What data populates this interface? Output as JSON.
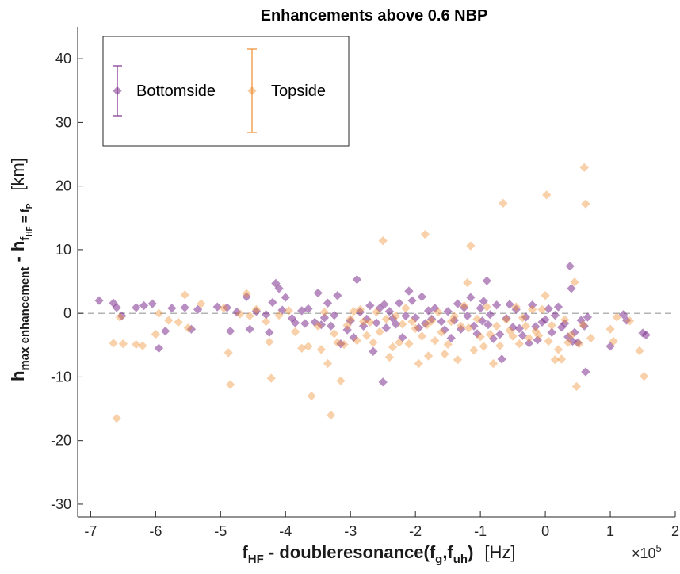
{
  "chart_data": {
    "type": "scatter",
    "title": "Enhancements above 0.6 NBP",
    "xlim": [
      -7.2,
      2.0
    ],
    "ylim": [
      -32,
      45
    ],
    "x_multiplier": "×10",
    "x_multiplier_exp": "5",
    "x_ticks": [
      "-7",
      "-6",
      "-5",
      "-4",
      "-3",
      "-2",
      "-1",
      "0",
      "1",
      "2"
    ],
    "y_ticks": [
      "-30",
      "-20",
      "-10",
      "0",
      "10",
      "20",
      "30",
      "40"
    ],
    "xlabel_parts": {
      "f": "f",
      "f_sub": "HF",
      "mid": " - doubleresonance(f",
      "g_sub": "g",
      "comma": ",f",
      "uh_sub": "uh",
      "close": ")",
      "unit": "[Hz]"
    },
    "ylabel_parts": {
      "h": "h",
      "h_sub": "max enhancement",
      "dash": " - h",
      "f_sub": "f",
      "hf_subsub": "HF",
      "eq": " = f",
      "p_subsub": "P",
      "unit": "[km]"
    },
    "grid": false,
    "reference_line_y": 0,
    "legend": {
      "placement": "top-left",
      "entries": [
        {
          "name": "Bottomside",
          "color": "#7e2f8e",
          "errorbar": [
            31,
            39
          ]
        },
        {
          "name": "Topside",
          "color": "#ed8b2d",
          "errorbar": [
            28.5,
            41.5
          ]
        }
      ]
    },
    "series": [
      {
        "name": "Bottomside",
        "color": "#7e2f8e",
        "points": [
          [
            -6.87,
            2.0
          ],
          [
            -6.65,
            1.6
          ],
          [
            -6.6,
            0.9
          ],
          [
            -6.52,
            -0.4
          ],
          [
            -6.3,
            0.9
          ],
          [
            -6.18,
            1.2
          ],
          [
            -6.05,
            1.5
          ],
          [
            -5.95,
            -5.5
          ],
          [
            -5.85,
            -2.8
          ],
          [
            -5.75,
            0.8
          ],
          [
            -5.55,
            0.9
          ],
          [
            -5.45,
            -2.5
          ],
          [
            -5.35,
            0.6
          ],
          [
            -5.05,
            1.0
          ],
          [
            -4.9,
            0.9
          ],
          [
            -4.85,
            -2.8
          ],
          [
            -4.75,
            0.2
          ],
          [
            -4.6,
            2.6
          ],
          [
            -4.55,
            -2.5
          ],
          [
            -4.45,
            0.3
          ],
          [
            -4.3,
            -0.2
          ],
          [
            -4.25,
            -3.0
          ],
          [
            -4.2,
            1.7
          ],
          [
            -4.15,
            4.7
          ],
          [
            -4.1,
            3.9
          ],
          [
            -4.05,
            0.5
          ],
          [
            -4.0,
            2.5
          ],
          [
            -3.9,
            -0.8
          ],
          [
            -3.85,
            -1.5
          ],
          [
            -3.75,
            0.4
          ],
          [
            -3.7,
            -1.6
          ],
          [
            -3.65,
            0.7
          ],
          [
            -3.55,
            -1.4
          ],
          [
            -3.5,
            3.2
          ],
          [
            -3.45,
            -1.8
          ],
          [
            -3.4,
            -0.7
          ],
          [
            -3.35,
            1.6
          ],
          [
            -3.3,
            -2.0
          ],
          [
            -3.25,
            -0.3
          ],
          [
            -3.2,
            2.8
          ],
          [
            -3.15,
            -4.8
          ],
          [
            -3.05,
            -2.6
          ],
          [
            -3.0,
            -1.2
          ],
          [
            -2.95,
            -3.8
          ],
          [
            -2.9,
            5.3
          ],
          [
            -2.85,
            0.2
          ],
          [
            -2.8,
            -2.0
          ],
          [
            -2.75,
            -0.9
          ],
          [
            -2.7,
            1.2
          ],
          [
            -2.65,
            -6.0
          ],
          [
            -2.6,
            -1.5
          ],
          [
            -2.55,
            0.8
          ],
          [
            -2.5,
            -10.8
          ],
          [
            -2.48,
            1.4
          ],
          [
            -2.45,
            -2.3
          ],
          [
            -2.4,
            0.3
          ],
          [
            -2.35,
            -0.8
          ],
          [
            -2.3,
            -1.7
          ],
          [
            -2.25,
            1.6
          ],
          [
            -2.2,
            -3.8
          ],
          [
            -2.15,
            -0.4
          ],
          [
            -2.1,
            3.5
          ],
          [
            -2.05,
            2.0
          ],
          [
            -2.0,
            -0.7
          ],
          [
            -1.95,
            -2.3
          ],
          [
            -1.9,
            2.6
          ],
          [
            -1.85,
            -1.6
          ],
          [
            -1.8,
            0.4
          ],
          [
            -1.75,
            -0.9
          ],
          [
            -1.7,
            0.8
          ],
          [
            -1.6,
            -1.3
          ],
          [
            -1.55,
            -2.6
          ],
          [
            -1.5,
            0.3
          ],
          [
            -1.45,
            -3.9
          ],
          [
            -1.4,
            -1.1
          ],
          [
            -1.35,
            1.5
          ],
          [
            -1.3,
            -2.5
          ],
          [
            -1.25,
            0.9
          ],
          [
            -1.2,
            -0.4
          ],
          [
            -1.15,
            2.5
          ],
          [
            -1.1,
            -2.0
          ],
          [
            -1.05,
            -3.2
          ],
          [
            -1.0,
            0.8
          ],
          [
            -0.97,
            -1.2
          ],
          [
            -0.95,
            1.9
          ],
          [
            -0.9,
            5.1
          ],
          [
            -0.88,
            -1.8
          ],
          [
            -0.85,
            -0.2
          ],
          [
            -0.8,
            -4.0
          ],
          [
            -0.75,
            1.3
          ],
          [
            -0.7,
            -3.3
          ],
          [
            -0.67,
            -7.2
          ],
          [
            -0.6,
            -0.8
          ],
          [
            -0.55,
            1.4
          ],
          [
            -0.5,
            -2.2
          ],
          [
            -0.45,
            0.6
          ],
          [
            -0.4,
            -2.4
          ],
          [
            -0.35,
            -3.5
          ],
          [
            -0.3,
            -0.6
          ],
          [
            -0.25,
            -4.7
          ],
          [
            -0.2,
            1.3
          ],
          [
            -0.15,
            -2.1
          ],
          [
            -0.12,
            -4.2
          ],
          [
            -0.05,
            -1.4
          ],
          [
            0.0,
            -1.0
          ],
          [
            0.05,
            0.7
          ],
          [
            0.1,
            -3.0
          ],
          [
            0.15,
            -0.3
          ],
          [
            0.2,
            1.0
          ],
          [
            0.25,
            -2.2
          ],
          [
            0.3,
            -1.6
          ],
          [
            0.35,
            -3.7
          ],
          [
            0.38,
            7.4
          ],
          [
            0.4,
            3.9
          ],
          [
            0.42,
            -4.4
          ],
          [
            0.45,
            -3.0
          ],
          [
            0.5,
            -4.6
          ],
          [
            0.55,
            -1.1
          ],
          [
            0.6,
            -2.0
          ],
          [
            0.62,
            -9.2
          ],
          [
            0.65,
            -0.6
          ],
          [
            1.0,
            -5.2
          ],
          [
            1.2,
            -0.2
          ],
          [
            1.25,
            -1.1
          ],
          [
            1.5,
            -3.1
          ],
          [
            1.55,
            -3.4
          ]
        ]
      },
      {
        "name": "Topside",
        "color": "#ed8b2d",
        "points": [
          [
            -6.65,
            -4.7
          ],
          [
            -6.6,
            -16.5
          ],
          [
            -6.55,
            -0.6
          ],
          [
            -6.5,
            -4.8
          ],
          [
            -6.3,
            -4.9
          ],
          [
            -6.2,
            -5.1
          ],
          [
            -6.0,
            -3.3
          ],
          [
            -5.95,
            0.0
          ],
          [
            -5.8,
            -1.1
          ],
          [
            -5.65,
            -1.4
          ],
          [
            -5.55,
            2.9
          ],
          [
            -5.5,
            -2.3
          ],
          [
            -5.3,
            1.5
          ],
          [
            -4.95,
            0.8
          ],
          [
            -4.88,
            -6.2
          ],
          [
            -4.85,
            -11.2
          ],
          [
            -4.7,
            -0.1
          ],
          [
            -4.6,
            3.1
          ],
          [
            -4.55,
            -0.4
          ],
          [
            -4.45,
            0.6
          ],
          [
            -4.3,
            -1.3
          ],
          [
            -4.25,
            -4.5
          ],
          [
            -4.22,
            -10.2
          ],
          [
            -4.1,
            -0.3
          ],
          [
            -3.95,
            0.4
          ],
          [
            -3.85,
            -2.9
          ],
          [
            -3.75,
            -5.5
          ],
          [
            -3.65,
            -5.2
          ],
          [
            -3.6,
            -13.0
          ],
          [
            -3.5,
            -2.0
          ],
          [
            -3.45,
            -5.7
          ],
          [
            -3.4,
            0.2
          ],
          [
            -3.35,
            -7.9
          ],
          [
            -3.3,
            -16.0
          ],
          [
            -3.25,
            -3.2
          ],
          [
            -3.2,
            -4.6
          ],
          [
            -3.15,
            -10.6
          ],
          [
            -3.1,
            -4.9
          ],
          [
            -3.05,
            -1.9
          ],
          [
            -3.0,
            -0.9
          ],
          [
            -2.95,
            0.3
          ],
          [
            -2.9,
            -4.3
          ],
          [
            -2.85,
            0.6
          ],
          [
            -2.8,
            -1.3
          ],
          [
            -2.75,
            -3.5
          ],
          [
            -2.7,
            -1.4
          ],
          [
            -2.65,
            -4.6
          ],
          [
            -2.6,
            0.2
          ],
          [
            -2.55,
            -2.9
          ],
          [
            -2.5,
            11.4
          ],
          [
            -2.45,
            -0.9
          ],
          [
            -2.4,
            -6.9
          ],
          [
            -2.35,
            -5.3
          ],
          [
            -2.3,
            -0.4
          ],
          [
            -2.25,
            -4.6
          ],
          [
            -2.2,
            -1.7
          ],
          [
            -2.15,
            0.8
          ],
          [
            -2.1,
            -4.8
          ],
          [
            -2.05,
            -1.3
          ],
          [
            -2.0,
            -2.4
          ],
          [
            -1.95,
            -7.9
          ],
          [
            -1.9,
            -3.6
          ],
          [
            -1.85,
            12.4
          ],
          [
            -1.82,
            -1.8
          ],
          [
            -1.8,
            -6.7
          ],
          [
            -1.75,
            -1.2
          ],
          [
            -1.7,
            -4.3
          ],
          [
            -1.65,
            0.2
          ],
          [
            -1.6,
            -3.0
          ],
          [
            -1.55,
            -6.4
          ],
          [
            -1.5,
            -4.9
          ],
          [
            -1.45,
            -1.3
          ],
          [
            -1.4,
            -0.5
          ],
          [
            -1.35,
            -7.3
          ],
          [
            -1.3,
            -2.0
          ],
          [
            -1.25,
            1.2
          ],
          [
            -1.2,
            4.8
          ],
          [
            -1.18,
            -2.3
          ],
          [
            -1.15,
            10.6
          ],
          [
            -1.1,
            -5.8
          ],
          [
            -1.05,
            -0.9
          ],
          [
            -1.0,
            -3.7
          ],
          [
            -0.95,
            -5.2
          ],
          [
            -0.9,
            1.0
          ],
          [
            -0.85,
            -3.3
          ],
          [
            -0.8,
            -7.9
          ],
          [
            -0.75,
            -2.0
          ],
          [
            -0.7,
            -5.1
          ],
          [
            -0.65,
            17.3
          ],
          [
            -0.6,
            -1.0
          ],
          [
            -0.55,
            -2.7
          ],
          [
            -0.5,
            -3.6
          ],
          [
            -0.45,
            1.0
          ],
          [
            -0.4,
            -4.8
          ],
          [
            -0.35,
            -0.7
          ],
          [
            -0.3,
            -2.0
          ],
          [
            -0.25,
            -3.9
          ],
          [
            -0.2,
            0.6
          ],
          [
            -0.15,
            -2.8
          ],
          [
            -0.1,
            -3.5
          ],
          [
            -0.05,
            0.6
          ],
          [
            0.0,
            2.8
          ],
          [
            0.02,
            18.6
          ],
          [
            0.05,
            -4.4
          ],
          [
            0.1,
            -1.9
          ],
          [
            0.15,
            -7.3
          ],
          [
            0.2,
            -5.7
          ],
          [
            0.25,
            -7.2
          ],
          [
            0.3,
            -1.0
          ],
          [
            0.35,
            -4.6
          ],
          [
            0.4,
            -3.4
          ],
          [
            0.45,
            4.9
          ],
          [
            0.48,
            -11.5
          ],
          [
            0.52,
            -4.8
          ],
          [
            0.58,
            -1.8
          ],
          [
            0.6,
            22.9
          ],
          [
            0.62,
            17.2
          ],
          [
            0.7,
            -3.9
          ],
          [
            1.0,
            -2.5
          ],
          [
            1.05,
            -4.4
          ],
          [
            1.1,
            -0.6
          ],
          [
            1.3,
            -1.2
          ],
          [
            1.45,
            -5.9
          ],
          [
            1.52,
            -9.9
          ]
        ]
      }
    ]
  }
}
